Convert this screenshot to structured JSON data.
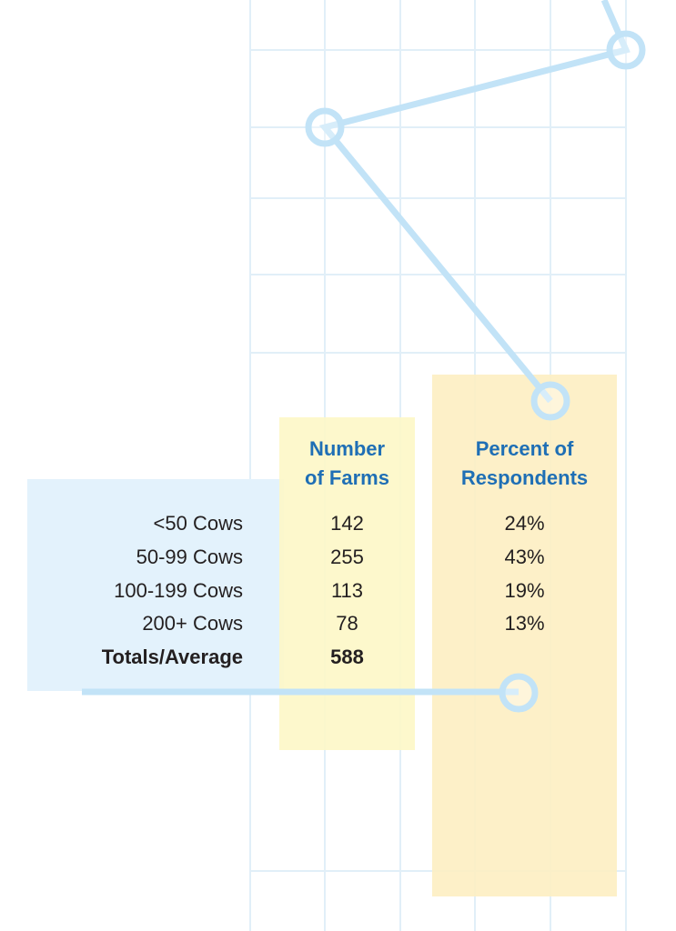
{
  "colors": {
    "grid": "#e1eff8",
    "line": "#c2e3f7",
    "yellow_band": "#fdf7c6",
    "orange_band": "#fdeec2",
    "blue_band": "#e3f2fc",
    "header_text": "#1f6fb5",
    "body_text": "#231f20"
  },
  "table": {
    "headers": {
      "farms": [
        "Number",
        "of Farms"
      ],
      "percent": [
        "Percent of",
        "Respondents"
      ]
    },
    "rows": [
      {
        "label": "<50 Cows",
        "farms": "142",
        "percent": "24%"
      },
      {
        "label": "50-99 Cows",
        "farms": "255",
        "percent": "43%"
      },
      {
        "label": "100-199 Cows",
        "farms": "113",
        "percent": "19%"
      },
      {
        "label": "200+ Cows",
        "farms": "78",
        "percent": "13%"
      }
    ],
    "total": {
      "label": "Totals/Average",
      "farms": "588",
      "percent": ""
    }
  },
  "chart_data": {
    "type": "table",
    "columns": [
      "",
      "Number of Farms",
      "Percent of Respondents"
    ],
    "categories": [
      "<50 Cows",
      "50-99 Cows",
      "100-199 Cows",
      "200+ Cows",
      "Totals/Average"
    ],
    "series": [
      {
        "name": "Number of Farms",
        "values": [
          142,
          255,
          113,
          78,
          588
        ]
      },
      {
        "name": "Percent of Respondents",
        "values": [
          24,
          43,
          19,
          13,
          null
        ]
      }
    ]
  }
}
